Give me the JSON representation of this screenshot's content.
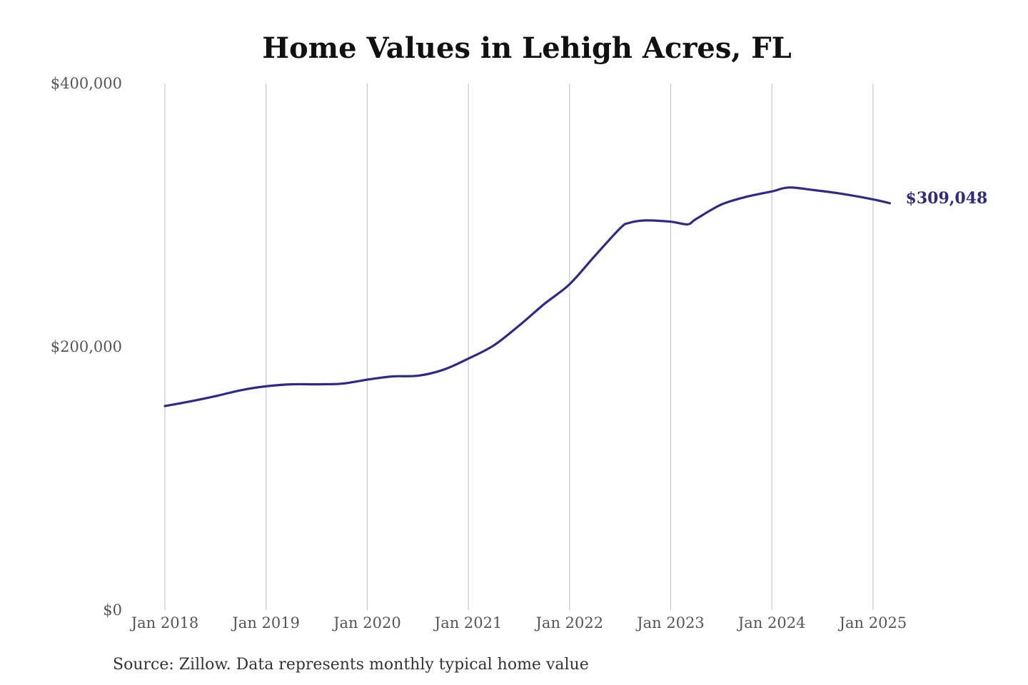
{
  "chart_data": {
    "type": "line",
    "title": "Home Values in Lehigh Acres, FL",
    "xlabel": "",
    "ylabel": "",
    "ylim": [
      0,
      400000
    ],
    "xlim": [
      "2018-01",
      "2025-03"
    ],
    "y_ticks": [
      {
        "value": 400000,
        "label": "$400,000"
      },
      {
        "value": 200000,
        "label": "$200,000"
      },
      {
        "value": 0,
        "label": "$0"
      }
    ],
    "x_ticks": [
      {
        "value": "2018-01",
        "label": "Jan 2018"
      },
      {
        "value": "2019-01",
        "label": "Jan 2019"
      },
      {
        "value": "2020-01",
        "label": "Jan 2020"
      },
      {
        "value": "2021-01",
        "label": "Jan 2021"
      },
      {
        "value": "2022-01",
        "label": "Jan 2022"
      },
      {
        "value": "2023-01",
        "label": "Jan 2023"
      },
      {
        "value": "2024-01",
        "label": "Jan 2024"
      },
      {
        "value": "2025-01",
        "label": "Jan 2025"
      }
    ],
    "grid": {
      "vertical": true,
      "horizontal": false
    },
    "legend": "none",
    "series": [
      {
        "color": "#2e2a86",
        "points": [
          {
            "x": "2018-01",
            "y": 155000
          },
          {
            "x": "2018-04",
            "y": 158500
          },
          {
            "x": "2018-07",
            "y": 162500
          },
          {
            "x": "2018-10",
            "y": 167000
          },
          {
            "x": "2019-01",
            "y": 170000
          },
          {
            "x": "2019-04",
            "y": 171500
          },
          {
            "x": "2019-07",
            "y": 171500
          },
          {
            "x": "2019-10",
            "y": 172000
          },
          {
            "x": "2020-01",
            "y": 175000
          },
          {
            "x": "2020-04",
            "y": 177500
          },
          {
            "x": "2020-07",
            "y": 178000
          },
          {
            "x": "2020-10",
            "y": 182500
          },
          {
            "x": "2021-01",
            "y": 191000
          },
          {
            "x": "2021-04",
            "y": 201000
          },
          {
            "x": "2021-07",
            "y": 216000
          },
          {
            "x": "2021-10",
            "y": 232500
          },
          {
            "x": "2022-01",
            "y": 247500
          },
          {
            "x": "2022-04",
            "y": 269000
          },
          {
            "x": "2022-07",
            "y": 290000
          },
          {
            "x": "2022-08",
            "y": 294000
          },
          {
            "x": "2022-10",
            "y": 296000
          },
          {
            "x": "2023-01",
            "y": 295000
          },
          {
            "x": "2023-03",
            "y": 293000
          },
          {
            "x": "2023-04",
            "y": 297000
          },
          {
            "x": "2023-07",
            "y": 308000
          },
          {
            "x": "2023-10",
            "y": 314000
          },
          {
            "x": "2024-01",
            "y": 318000
          },
          {
            "x": "2024-03",
            "y": 321000
          },
          {
            "x": "2024-06",
            "y": 319000
          },
          {
            "x": "2024-09",
            "y": 316500
          },
          {
            "x": "2025-01",
            "y": 312000
          },
          {
            "x": "2025-03",
            "y": 309048
          }
        ]
      }
    ],
    "annotations": [
      {
        "text": "$309,048",
        "x": "2025-03",
        "y": 309048
      }
    ],
    "source": "Source: Zillow. Data represents monthly typical home value"
  }
}
